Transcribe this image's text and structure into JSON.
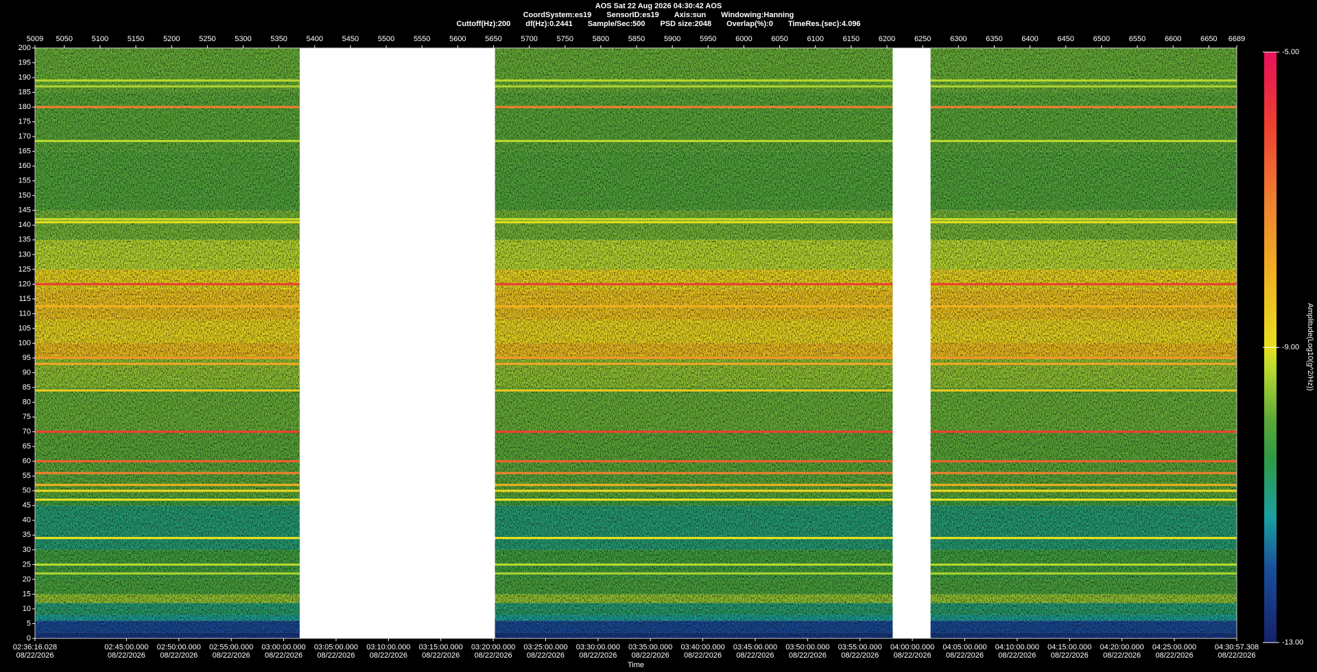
{
  "header": {
    "line1": "AOS  Sat 22 Aug 2026 04:30:42  AOS",
    "line2": [
      "CoordSystem:es19",
      "SensorID:es19",
      "Axis:sun",
      "Windowing:Hanning"
    ],
    "line3": [
      "Cuttoff(Hz):200",
      "df(Hz):0.2441",
      "Sample/Sec:500",
      "PSD size:2048",
      "Overlap(%):0",
      "TimeRes.(sec):4.096"
    ]
  },
  "chart_data": {
    "type": "spectrogram",
    "xlabel": "Time",
    "colorbar_label": "Amplitude(Log10(g^2/Hz))",
    "x2lim": [
      5009,
      6689
    ],
    "x2ticks": [
      5009,
      5050,
      5100,
      5150,
      5200,
      5250,
      5300,
      5350,
      5400,
      5450,
      5500,
      5550,
      5600,
      5650,
      5700,
      5750,
      5800,
      5850,
      5900,
      5950,
      6000,
      6050,
      6100,
      6150,
      6200,
      6250,
      6300,
      6350,
      6400,
      6450,
      6500,
      6550,
      6600,
      6650,
      6689
    ],
    "xlim": [
      "02:36:16.028",
      "04:30:57.308"
    ],
    "xticks": [
      "02:36:16.028",
      "02:45:00.000",
      "02:50:00.000",
      "02:55:00.000",
      "03:00:00.000",
      "03:05:00.000",
      "03:10:00.000",
      "03:15:00.000",
      "03:20:00.000",
      "03:25:00.000",
      "03:30:00.000",
      "03:35:00.000",
      "03:40:00.000",
      "03:45:00.000",
      "03:50:00.000",
      "03:55:00.000",
      "04:00:00.000",
      "04:05:00.000",
      "04:10:00.000",
      "04:15:00.000",
      "04:20:00.000",
      "04:25:00.000",
      "04:30:57.308"
    ],
    "xtick_dates": [
      "08/22/2026",
      "08/22/2026",
      "08/22/2026",
      "08/22/2026",
      "08/22/2026",
      "08/22/2026",
      "08/22/2026",
      "08/22/2026",
      "08/22/2026",
      "08/22/2026",
      "08/22/2026",
      "08/22/2026",
      "08/22/2026",
      "08/22/2026",
      "08/22/2026",
      "08/22/2026",
      "08/22/2026",
      "08/22/2026",
      "08/22/2026",
      "08/22/2026",
      "08/22/2026",
      "08/22/2026",
      "08/22/2026"
    ],
    "ylim": [
      0,
      200
    ],
    "yticks": [
      0,
      5,
      10,
      15,
      20,
      25,
      30,
      35,
      40,
      45,
      50,
      55,
      60,
      65,
      70,
      75,
      80,
      85,
      90,
      95,
      100,
      105,
      110,
      115,
      120,
      125,
      130,
      135,
      140,
      145,
      150,
      155,
      160,
      165,
      170,
      175,
      180,
      185,
      190,
      195,
      200
    ],
    "clim": [
      -13,
      -5
    ],
    "cticks": [
      {
        "value": -13,
        "label": "-13.00"
      },
      {
        "value": -9,
        "label": "-9.00"
      },
      {
        "value": -5,
        "label": "-5.00"
      }
    ],
    "colormap": [
      {
        "value": -13,
        "color": "#14206a"
      },
      {
        "value": -12,
        "color": "#1a4f9a"
      },
      {
        "value": -11.3,
        "color": "#1aa0a0"
      },
      {
        "value": -10.5,
        "color": "#2f9a45"
      },
      {
        "value": -10,
        "color": "#5aa838"
      },
      {
        "value": -9.3,
        "color": "#b8d830"
      },
      {
        "value": -9,
        "color": "#e8e020"
      },
      {
        "value": -8,
        "color": "#f0b020"
      },
      {
        "value": -7,
        "color": "#f08030"
      },
      {
        "value": -6,
        "color": "#ee4030"
      },
      {
        "value": -5,
        "color": "#e8105a"
      }
    ],
    "segments": [
      [
        5009,
        5379
      ],
      [
        5652,
        6208
      ],
      [
        6261,
        6689
      ]
    ],
    "bands": [
      {
        "from": 0,
        "to": 2,
        "amplitude": -12.5
      },
      {
        "from": 2,
        "to": 6,
        "amplitude": -12.1
      },
      {
        "from": 6,
        "to": 8,
        "amplitude": -11.2
      },
      {
        "from": 8,
        "to": 10,
        "amplitude": -10.8
      },
      {
        "from": 10,
        "to": 12,
        "amplitude": -10.9
      },
      {
        "from": 12,
        "to": 15,
        "amplitude": -9.6
      },
      {
        "from": 15,
        "to": 20,
        "amplitude": -10.2
      },
      {
        "from": 20,
        "to": 30,
        "amplitude": -10.3
      },
      {
        "from": 30,
        "to": 45,
        "amplitude": -10.9
      },
      {
        "from": 45,
        "to": 48,
        "amplitude": -10.3
      },
      {
        "from": 48,
        "to": 70,
        "amplitude": -10
      },
      {
        "from": 70,
        "to": 85,
        "amplitude": -9.9
      },
      {
        "from": 85,
        "to": 95,
        "amplitude": -9.6
      },
      {
        "from": 95,
        "to": 100,
        "amplitude": -8.3
      },
      {
        "from": 100,
        "to": 108,
        "amplitude": -8.8
      },
      {
        "from": 108,
        "to": 118,
        "amplitude": -8.4
      },
      {
        "from": 118,
        "to": 125,
        "amplitude": -8.8
      },
      {
        "from": 125,
        "to": 135,
        "amplitude": -9.3
      },
      {
        "from": 135,
        "to": 145,
        "amplitude": -9.8
      },
      {
        "from": 145,
        "to": 165,
        "amplitude": -10.1
      },
      {
        "from": 165,
        "to": 185,
        "amplitude": -10
      },
      {
        "from": 185,
        "to": 200,
        "amplitude": -9.9
      }
    ],
    "tones": [
      {
        "frequency": 120,
        "amplitude": -6
      },
      {
        "frequency": 180,
        "amplitude": -7
      },
      {
        "frequency": 70,
        "amplitude": -6
      },
      {
        "frequency": 60,
        "amplitude": -6.5
      },
      {
        "frequency": 56,
        "amplitude": -7
      },
      {
        "frequency": 52,
        "amplitude": -8
      },
      {
        "frequency": 50,
        "amplitude": -8.8
      },
      {
        "frequency": 47,
        "amplitude": -9
      },
      {
        "frequency": 34,
        "amplitude": -9
      },
      {
        "frequency": 95,
        "amplitude": -7.5
      },
      {
        "frequency": 93,
        "amplitude": -7.8
      },
      {
        "frequency": 112.5,
        "amplitude": -8
      },
      {
        "frequency": 141,
        "amplitude": -9
      },
      {
        "frequency": 142,
        "amplitude": -9.2
      },
      {
        "frequency": 168.5,
        "amplitude": -9.3
      },
      {
        "frequency": 189,
        "amplitude": -9.3
      },
      {
        "frequency": 187,
        "amplitude": -9.4
      },
      {
        "frequency": 84,
        "amplitude": -8.5
      },
      {
        "frequency": 25,
        "amplitude": -9.3
      },
      {
        "frequency": 22,
        "amplitude": -9.4
      }
    ]
  }
}
